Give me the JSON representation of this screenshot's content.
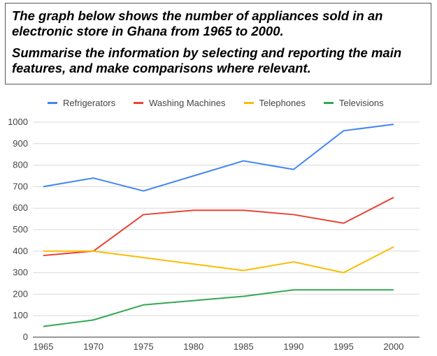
{
  "prompt": {
    "line1": "The graph below shows the number of appliances sold in an electronic store in Ghana from 1965 to 2000.",
    "line2": "Summarise the information by selecting and reporting the main features, and make comparisons where relevant."
  },
  "chart_data": {
    "type": "line",
    "categories": [
      "1965",
      "1970",
      "1975",
      "1980",
      "1985",
      "1990",
      "1995",
      "2000"
    ],
    "ylim": [
      0,
      1000
    ],
    "yticks": [
      0,
      100,
      200,
      300,
      400,
      500,
      600,
      700,
      800,
      900,
      1000
    ],
    "grid": true,
    "legend": "top",
    "series": [
      {
        "name": "Refrigerators",
        "color": "#4285F4",
        "values": [
          700,
          740,
          680,
          750,
          820,
          780,
          960,
          990
        ]
      },
      {
        "name": "Washing Machines",
        "color": "#EA4335",
        "values": [
          380,
          400,
          570,
          590,
          590,
          570,
          530,
          650
        ]
      },
      {
        "name": "Telephones",
        "color": "#FBBC04",
        "values": [
          400,
          400,
          370,
          340,
          310,
          350,
          300,
          420
        ]
      },
      {
        "name": "Televisions",
        "color": "#34A853",
        "values": [
          50,
          80,
          150,
          170,
          190,
          220,
          220,
          220
        ]
      }
    ]
  }
}
